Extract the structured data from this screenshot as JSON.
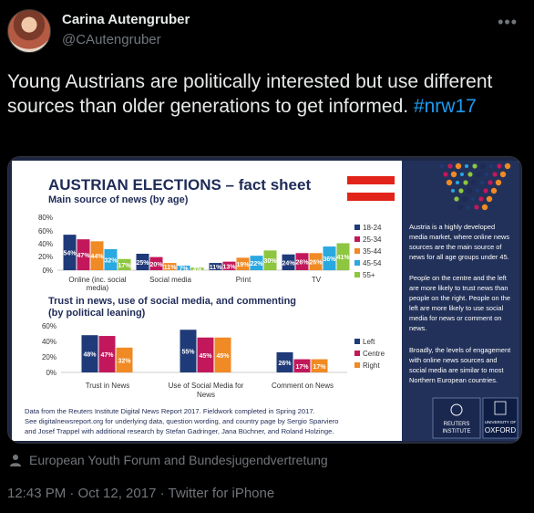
{
  "user": {
    "name": "Carina Autengruber",
    "handle": "@CAutengruber"
  },
  "tweet": {
    "text": "Young Austrians are politically interested but use different sources than older generations to get informed.",
    "hashtag": "#nrw17"
  },
  "image": {
    "title": "AUSTRIAN ELECTIONS – fact sheet",
    "chart1": {
      "subtitle": "Main source of news (by age)",
      "yticks": [
        "80%",
        "60%",
        "40%",
        "20%",
        "0%"
      ],
      "categories": [
        "Online (inc. social",
        "media)",
        "Social media",
        "Print",
        "TV"
      ],
      "legend": [
        "18-24",
        "25-34",
        "35-44",
        "45-54",
        "55+"
      ],
      "colors": [
        "#1f3a78",
        "#c2185b",
        "#f08a24",
        "#2aa8e0",
        "#8dc63f"
      ]
    },
    "chart2": {
      "subtitle_line1": "Trust in news, use of social media, and commenting",
      "subtitle_line2": "(by political leaning)",
      "yticks": [
        "60%",
        "40%",
        "20%",
        "0%"
      ],
      "categories": [
        "Trust in News",
        "Use of Social Media for",
        "News",
        "Comment on News"
      ],
      "legend": [
        "Left",
        "Centre",
        "Right"
      ],
      "colors": [
        "#1f3a78",
        "#c2185b",
        "#f08a24"
      ]
    },
    "side_text": [
      [
        "Austria is a highly developed",
        "media market, where online news",
        "sources are the main source of",
        "news for all age groups under 45."
      ],
      [
        "People on the centre and the left",
        "are more likely to trust news than",
        "people on the right. People on the",
        "left are more likely to use social",
        "media for news or comment on",
        "news."
      ],
      [
        "Broadly, the levels of engagement",
        "with online news sources and",
        "social media are similar to most",
        "Northern European countries."
      ]
    ],
    "footer": [
      "Data from the Reuters Institute Digital News Report 2017. Fieldwork completed in Spring 2017.",
      "See digitalnewsreport.org for underlying data, question wording, and country page by Sergio Sparviero",
      "and Josef Trappel with additional research by Stefan Gadringer, Jana Büchner, and Roland Holzinge."
    ],
    "logo1": [
      "REUTERS",
      "INSTITUTE"
    ],
    "logo2": [
      "UNIVERSITY OF",
      "OXFORD"
    ]
  },
  "chart_data": [
    {
      "type": "bar",
      "title": "Main source of news (by age)",
      "categories": [
        "Online (inc. social media)",
        "Social media",
        "Print",
        "TV"
      ],
      "ylim": [
        0,
        80
      ],
      "series": [
        {
          "name": "18-24",
          "values": [
            54,
            25,
            11,
            24
          ]
        },
        {
          "name": "25-34",
          "values": [
            47,
            20,
            13,
            26
          ]
        },
        {
          "name": "35-44",
          "values": [
            44,
            11,
            19,
            26
          ]
        },
        {
          "name": "45-54",
          "values": [
            32,
            7,
            22,
            36
          ]
        },
        {
          "name": "55+",
          "values": [
            17,
            4,
            30,
            41
          ]
        }
      ]
    },
    {
      "type": "bar",
      "title": "Trust in news, use of social media, and commenting (by political leaning)",
      "categories": [
        "Trust in News",
        "Use of Social Media for News",
        "Comment on News"
      ],
      "ylim": [
        0,
        60
      ],
      "series": [
        {
          "name": "Left",
          "values": [
            48,
            55,
            26
          ]
        },
        {
          "name": "Centre",
          "values": [
            47,
            45,
            17
          ]
        },
        {
          "name": "Right",
          "values": [
            32,
            45,
            17
          ]
        }
      ]
    }
  ],
  "location": "European Youth Forum and Bundesjugendvertretung",
  "meta": "12:43 PM · Oct 12, 2017 · Twitter for iPhone"
}
